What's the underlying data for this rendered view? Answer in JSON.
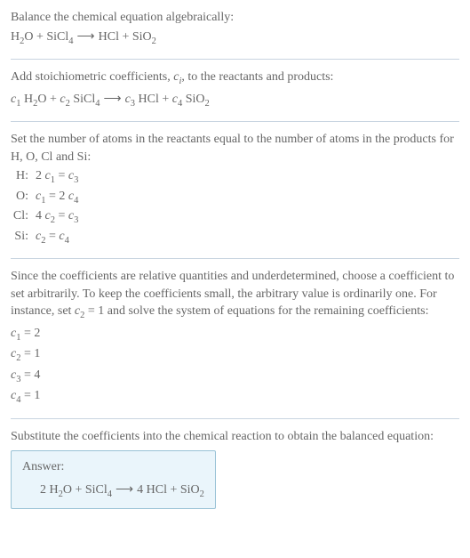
{
  "section1": {
    "title": "Balance the chemical equation algebraically:",
    "equation": "H₂O + SiCl₄  ⟶  HCl + SiO₂"
  },
  "section2": {
    "title_pre": "Add stoichiometric coefficients, ",
    "title_ci": "c",
    "title_ci_sub": "i",
    "title_post": ", to the reactants and products:",
    "equation": "c₁ H₂O + c₂ SiCl₄  ⟶  c₃ HCl + c₄ SiO₂"
  },
  "section3": {
    "title": "Set the number of atoms in the reactants equal to the number of atoms in the products for H, O, Cl and Si:",
    "rows": [
      {
        "label": "H:",
        "eq": "2 c₁ = c₃"
      },
      {
        "label": "O:",
        "eq": "c₁ = 2 c₄"
      },
      {
        "label": "Cl:",
        "eq": "4 c₂ = c₃"
      },
      {
        "label": "Si:",
        "eq": "c₂ = c₄"
      }
    ]
  },
  "section4": {
    "title": "Since the coefficients are relative quantities and underdetermined, choose a coefficient to set arbitrarily. To keep the coefficients small, the arbitrary value is ordinarily one. For instance, set c₂ = 1 and solve the system of equations for the remaining coefficients:",
    "rows": [
      "c₁ = 2",
      "c₂ = 1",
      "c₃ = 4",
      "c₄ = 1"
    ]
  },
  "section5": {
    "title": "Substitute the coefficients into the chemical reaction to obtain the balanced equation:",
    "answer_label": "Answer:",
    "answer_eq": "2 H₂O + SiCl₄  ⟶  4 HCl + SiO₂"
  }
}
